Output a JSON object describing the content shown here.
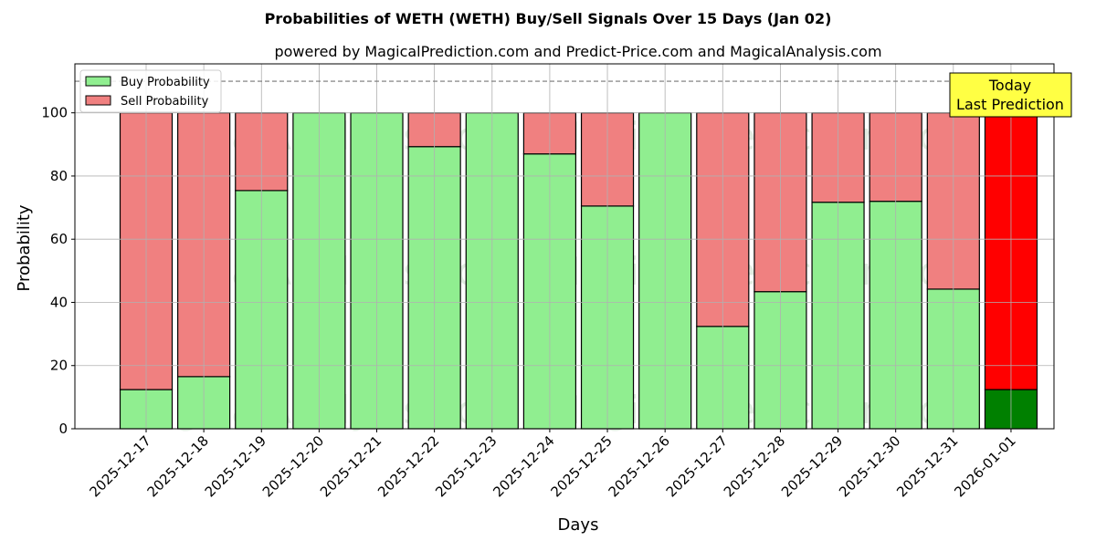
{
  "chart_data": {
    "type": "bar",
    "stacked": true,
    "title": "Probabilities of WETH (WETH) Buy/Sell Signals Over 15 Days (Jan 02)",
    "subtitle": "powered by MagicalPrediction.com and Predict-Price.com and MagicalAnalysis.com",
    "xlabel": "Days",
    "ylabel": "Probability",
    "ylim": [
      0,
      115.5
    ],
    "yticks": [
      0,
      20,
      40,
      60,
      80,
      100
    ],
    "grid": true,
    "reference_line": 110,
    "categories": [
      "2025-12-17",
      "2025-12-18",
      "2025-12-19",
      "2025-12-20",
      "2025-12-21",
      "2025-12-22",
      "2025-12-23",
      "2025-12-24",
      "2025-12-25",
      "2025-12-26",
      "2025-12-27",
      "2025-12-28",
      "2025-12-29",
      "2025-12-30",
      "2025-12-31",
      "2026-01-01"
    ],
    "series": [
      {
        "name": "Buy Probability",
        "color": "#90ee90",
        "values": [
          12.4,
          16.5,
          75.4,
          100,
          100,
          89.3,
          100,
          87.0,
          70.5,
          100,
          32.4,
          43.4,
          71.7,
          72.0,
          44.2,
          12.4
        ]
      },
      {
        "name": "Sell Probability",
        "color": "#f08080",
        "values": [
          87.6,
          83.5,
          24.6,
          0,
          0,
          10.7,
          0,
          13.0,
          29.5,
          0,
          67.6,
          56.6,
          28.3,
          28.0,
          55.8,
          87.6
        ]
      }
    ],
    "highlight": {
      "index": 15,
      "buy_color": "#008000",
      "sell_color": "#ff0000"
    },
    "legend_position": "top-left",
    "annotation": {
      "line1": "Today",
      "line2": "Last Prediction",
      "color": "#ffff44"
    },
    "watermarks": [
      "MagicalAnalysis.com",
      "MagicalPrediction.com"
    ]
  }
}
